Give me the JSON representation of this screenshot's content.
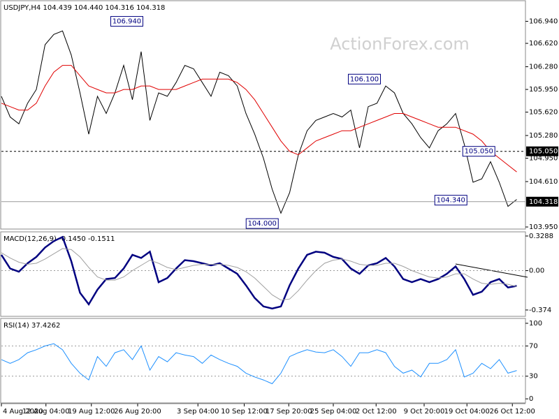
{
  "chart_data": [
    {
      "type": "line",
      "title": "USDJPY,H4 104.439 104.440 104.316 104.318",
      "watermark": "ActionForex.com",
      "xlim": [
        0,
        60
      ],
      "ylim": [
        103.93,
        107.23
      ],
      "yticks": [
        {
          "value": 106.94,
          "label": "106.940"
        },
        {
          "value": 106.62,
          "label": "106.620"
        },
        {
          "value": 106.28,
          "label": "106.280"
        },
        {
          "value": 105.95,
          "label": "105.950"
        },
        {
          "value": 105.62,
          "label": "105.620"
        },
        {
          "value": 105.28,
          "label": "105.280"
        },
        {
          "value": 104.95,
          "label": "104.950"
        },
        {
          "value": 104.61,
          "label": "104.610"
        },
        {
          "value": 103.95,
          "label": "103.950"
        }
      ],
      "series": [
        {
          "color": "#000000",
          "values": [
            105.85,
            105.55,
            105.45,
            105.75,
            105.95,
            106.6,
            106.75,
            106.8,
            106.45,
            105.9,
            105.3,
            105.85,
            105.6,
            105.9,
            106.3,
            105.8,
            106.5,
            105.5,
            105.9,
            105.85,
            106.05,
            106.3,
            106.25,
            106.05,
            105.85,
            106.2,
            106.15,
            106.0,
            105.6,
            105.3,
            104.95,
            104.5,
            104.15,
            104.45,
            105.0,
            105.35,
            105.5,
            105.55,
            105.6,
            105.55,
            105.65,
            105.1,
            105.7,
            105.75,
            106.0,
            105.9,
            105.6,
            105.45,
            105.25,
            105.1,
            105.35,
            105.45,
            105.6,
            105.15,
            104.6,
            104.65,
            104.9,
            104.6,
            104.25,
            104.35
          ]
        },
        {
          "color": "#e00000",
          "values": [
            105.75,
            105.7,
            105.65,
            105.65,
            105.75,
            106.0,
            106.2,
            106.3,
            106.3,
            106.15,
            106.0,
            105.95,
            105.9,
            105.9,
            105.95,
            105.95,
            106.0,
            106.0,
            105.95,
            105.95,
            105.95,
            106.0,
            106.05,
            106.1,
            106.1,
            106.1,
            106.1,
            106.05,
            105.95,
            105.8,
            105.6,
            105.4,
            105.2,
            105.05,
            105.0,
            105.1,
            105.2,
            105.25,
            105.3,
            105.35,
            105.35,
            105.4,
            105.45,
            105.5,
            105.55,
            105.6,
            105.6,
            105.55,
            105.5,
            105.45,
            105.4,
            105.4,
            105.4,
            105.35,
            105.3,
            105.2,
            105.05,
            104.95,
            104.85,
            104.75
          ]
        }
      ],
      "annotations": [
        {
          "x": 16.2,
          "value": 106.94,
          "label": "106.940"
        },
        {
          "x": 43.4,
          "value": 106.1,
          "label": "106.100"
        },
        {
          "x": 56.5,
          "value": 105.05,
          "label": "105.050"
        },
        {
          "x": 53.3,
          "value": 104.34,
          "label": "104.340"
        },
        {
          "x": 31.7,
          "value": 104.0,
          "label": "104.000"
        }
      ],
      "hlines": [
        {
          "value": 105.05,
          "label": "105.050",
          "style": "dashed"
        },
        {
          "value": 104.318,
          "label": "104.318",
          "style": "solid"
        }
      ]
    },
    {
      "type": "line",
      "title": "MACD(12,26,9) -0.1450 -0.1511",
      "xlim": [
        0,
        60
      ],
      "ylim": [
        -0.4276,
        0.3617
      ],
      "yticks": [
        0.3288,
        {
          "value": 0,
          "label": "0.00"
        },
        -0.374
      ],
      "reference_lines": [
        0
      ],
      "series": [
        {
          "color": "#000080",
          "width": 2.5,
          "values": [
            0.15,
            0.02,
            -0.01,
            0.07,
            0.13,
            0.22,
            0.28,
            0.32,
            0.09,
            -0.21,
            -0.32,
            -0.18,
            -0.08,
            -0.07,
            0.02,
            0.15,
            0.12,
            0.18,
            -0.11,
            -0.07,
            0.02,
            0.1,
            0.09,
            0.07,
            0.05,
            0.07,
            0.02,
            -0.03,
            -0.14,
            -0.26,
            -0.34,
            -0.36,
            -0.34,
            -0.14,
            0.02,
            0.15,
            0.18,
            0.17,
            0.13,
            0.11,
            0.02,
            -0.03,
            0.05,
            0.07,
            0.12,
            0.04,
            -0.08,
            -0.11,
            -0.08,
            -0.11,
            -0.08,
            -0.03,
            0.04,
            -0.08,
            -0.23,
            -0.2,
            -0.11,
            -0.08,
            -0.16,
            -0.145
          ]
        },
        {
          "color": "#a0a0a0",
          "width": 1,
          "values": [
            0.17,
            0.12,
            0.08,
            0.06,
            0.07,
            0.11,
            0.16,
            0.21,
            0.2,
            0.13,
            0.03,
            -0.06,
            -0.09,
            -0.09,
            -0.06,
            0.0,
            0.05,
            0.1,
            0.07,
            0.03,
            0.01,
            0.03,
            0.05,
            0.06,
            0.06,
            0.06,
            0.05,
            0.03,
            -0.01,
            -0.07,
            -0.15,
            -0.23,
            -0.28,
            -0.27,
            -0.19,
            -0.09,
            0.0,
            0.07,
            0.1,
            0.11,
            0.09,
            0.06,
            0.05,
            0.05,
            0.07,
            0.07,
            0.04,
            0.0,
            -0.03,
            -0.06,
            -0.07,
            -0.06,
            -0.03,
            -0.03,
            -0.08,
            -0.12,
            -0.13,
            -0.12,
            -0.13,
            -0.1511
          ]
        }
      ]
    },
    {
      "type": "line",
      "title": "RSI(14) 37.4262",
      "xlim": [
        0,
        60
      ],
      "ylim": [
        -4.5,
        105.5
      ],
      "yticks": [
        100,
        70,
        30,
        0
      ],
      "reference_lines": [
        70,
        30
      ],
      "xticks": [
        {
          "value": 0,
          "label": "4 Aug 2020"
        },
        {
          "value": 5.1,
          "label": "12 Aug 04:00"
        },
        {
          "value": 10.3,
          "label": "19 Aug 12:00"
        },
        {
          "value": 15.6,
          "label": "26 Aug 20:00"
        },
        {
          "value": 22.5,
          "label": "3 Sep 04:00"
        },
        {
          "value": 27.8,
          "label": "10 Sep 12:00"
        },
        {
          "value": 32.9,
          "label": "17 Sep 20:00"
        },
        {
          "value": 38,
          "label": "25 Sep 04:00"
        },
        {
          "value": 42.9,
          "label": "2 Oct 12:00"
        },
        {
          "value": 48.4,
          "label": "9 Oct 20:00"
        },
        {
          "value": 53.3,
          "label": "19 Oct 04:00"
        },
        {
          "value": 58.5,
          "label": "26 Oct 12:00"
        }
      ],
      "series": [
        {
          "color": "#1e90ff",
          "width": 1,
          "values": [
            52,
            47,
            52,
            61,
            65,
            70,
            73,
            65,
            47,
            34,
            25,
            56,
            43,
            61,
            65,
            52,
            70,
            38,
            56,
            49,
            61,
            58,
            56,
            47,
            58,
            52,
            47,
            43,
            34,
            29,
            25,
            20,
            34,
            56,
            61,
            65,
            62,
            61,
            65,
            56,
            43,
            61,
            61,
            65,
            61,
            43,
            34,
            38,
            29,
            47,
            47,
            52,
            65,
            29,
            34,
            47,
            40,
            52,
            34,
            37.4262
          ]
        }
      ]
    }
  ]
}
